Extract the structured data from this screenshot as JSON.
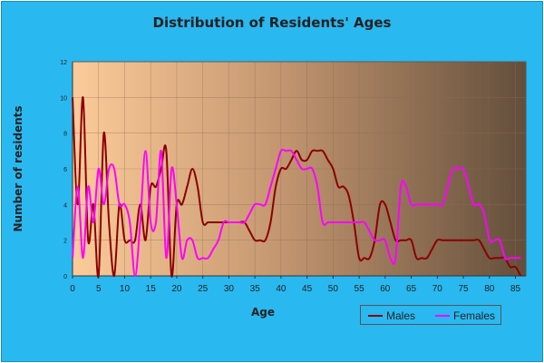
{
  "chart_data": {
    "type": "line",
    "title": "Distribution of Residents' Ages",
    "xlabel": "Age",
    "ylabel": "Number of residents",
    "xlim": [
      0,
      87
    ],
    "ylim": [
      0,
      12
    ],
    "x_ticks": [
      0,
      5,
      10,
      15,
      20,
      25,
      30,
      35,
      40,
      45,
      50,
      55,
      60,
      65,
      70,
      75,
      80,
      85
    ],
    "y_ticks": [
      0,
      2,
      4,
      6,
      8,
      10,
      12
    ],
    "grid": true,
    "legend_position": "bottom-right",
    "series": [
      {
        "name": "Males",
        "color": "#8b0000",
        "x": [
          0,
          1,
          2,
          3,
          4,
          5,
          6,
          7,
          8,
          9,
          10,
          11,
          12,
          13,
          14,
          15,
          16,
          17,
          18,
          19,
          20,
          21,
          22,
          23,
          24,
          25,
          26,
          27,
          28,
          29,
          30,
          31,
          32,
          33,
          34,
          35,
          36,
          37,
          38,
          39,
          40,
          41,
          42,
          43,
          44,
          45,
          46,
          47,
          48,
          49,
          50,
          51,
          52,
          53,
          54,
          55,
          56,
          57,
          58,
          59,
          60,
          61,
          62,
          63,
          64,
          65,
          66,
          67,
          68,
          69,
          70,
          71,
          72,
          73,
          74,
          75,
          76,
          77,
          78,
          79,
          80,
          81,
          82,
          83,
          84,
          85,
          86
        ],
        "values": [
          10,
          4,
          10,
          2,
          4,
          0,
          8,
          3,
          0,
          4,
          2,
          2,
          2,
          4,
          2,
          5,
          5,
          6,
          7,
          0,
          4,
          4,
          5,
          6,
          5,
          3,
          3,
          3,
          3,
          3,
          3,
          3,
          3,
          3,
          2.5,
          2,
          2,
          2,
          3,
          5,
          6,
          6,
          6.5,
          7,
          6.5,
          6.5,
          7,
          7,
          7,
          6.5,
          6,
          5,
          5,
          4.5,
          3,
          1,
          1,
          1,
          2,
          4,
          4,
          3,
          2,
          2,
          2,
          2,
          1,
          1,
          1,
          1.5,
          2,
          2,
          2,
          2,
          2,
          2,
          2,
          2,
          2,
          1.5,
          1,
          1,
          1,
          1,
          0.5,
          0.5,
          0
        ]
      },
      {
        "name": "Females",
        "color": "#ff00ff",
        "x": [
          0,
          1,
          2,
          3,
          4,
          5,
          6,
          7,
          8,
          9,
          10,
          11,
          12,
          13,
          14,
          15,
          16,
          17,
          18,
          19,
          20,
          21,
          22,
          23,
          24,
          25,
          26,
          27,
          28,
          29,
          30,
          31,
          32,
          33,
          34,
          35,
          36,
          37,
          38,
          39,
          40,
          41,
          42,
          43,
          44,
          45,
          46,
          47,
          48,
          49,
          50,
          51,
          52,
          53,
          54,
          55,
          56,
          57,
          58,
          59,
          60,
          61,
          62,
          63,
          64,
          65,
          66,
          67,
          68,
          69,
          70,
          71,
          72,
          73,
          74,
          75,
          76,
          77,
          78,
          79,
          80,
          81,
          82,
          83,
          84,
          85,
          86
        ],
        "values": [
          1,
          5,
          1,
          5,
          3,
          6,
          4,
          6,
          6,
          4,
          4,
          3,
          0,
          3,
          7,
          3,
          3,
          7,
          1,
          6,
          4,
          1,
          2,
          2,
          1,
          1,
          1,
          1.5,
          2,
          3,
          3,
          3,
          3,
          3,
          3.5,
          4,
          4,
          4,
          5,
          6,
          7,
          7,
          7,
          6.5,
          6,
          6,
          6,
          5,
          3,
          3,
          3,
          3,
          3,
          3,
          3,
          3,
          3,
          2.5,
          2,
          2,
          2,
          1,
          1,
          5,
          5,
          4,
          4,
          4,
          4,
          4,
          4,
          4,
          5,
          6,
          6,
          6,
          5,
          4,
          4,
          3.5,
          2,
          2,
          2,
          1,
          1,
          1,
          1
        ]
      }
    ]
  }
}
